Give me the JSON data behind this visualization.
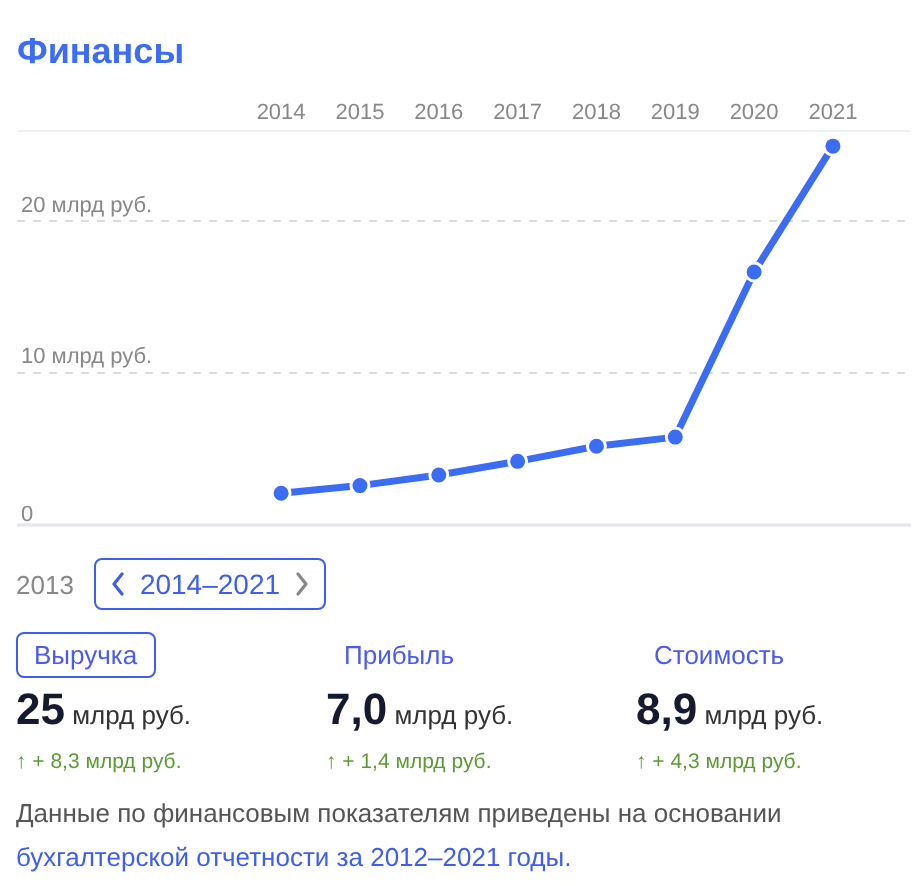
{
  "chart_data": {
    "type": "line",
    "title": "Финансы",
    "categories": [
      "2014",
      "2015",
      "2016",
      "2017",
      "2018",
      "2019",
      "2020",
      "2021"
    ],
    "series": [
      {
        "color": "#3a6cf4",
        "values": [
          2.1,
          2.6,
          3.3,
          4.2,
          5.2,
          5.8,
          16.7,
          25
        ]
      }
    ],
    "ylim": [
      0,
      26
    ],
    "yticks": [
      {
        "value": 0,
        "label": "0"
      },
      {
        "value": 10,
        "label": "10 млрд руб."
      },
      {
        "value": 20,
        "label": "20 млрд руб."
      }
    ],
    "grid": "y",
    "marker": "circle",
    "line_style": "solid",
    "annotations": [
      "2013",
      "2014–2021",
      "Выручка",
      "Прибыль",
      "Стоимость",
      "25 млрд руб.",
      "7,0 млрд руб.",
      "8,9 млрд руб.",
      "↑ + 8,3 млрд руб.",
      "↑ + 1,4 млрд руб.",
      "↑ + 4,3 млрд руб.",
      "Данные по финансовым показателям приведены на основании",
      "бухгалтерской отчетности за 2012–2021 годы."
    ]
  }
}
